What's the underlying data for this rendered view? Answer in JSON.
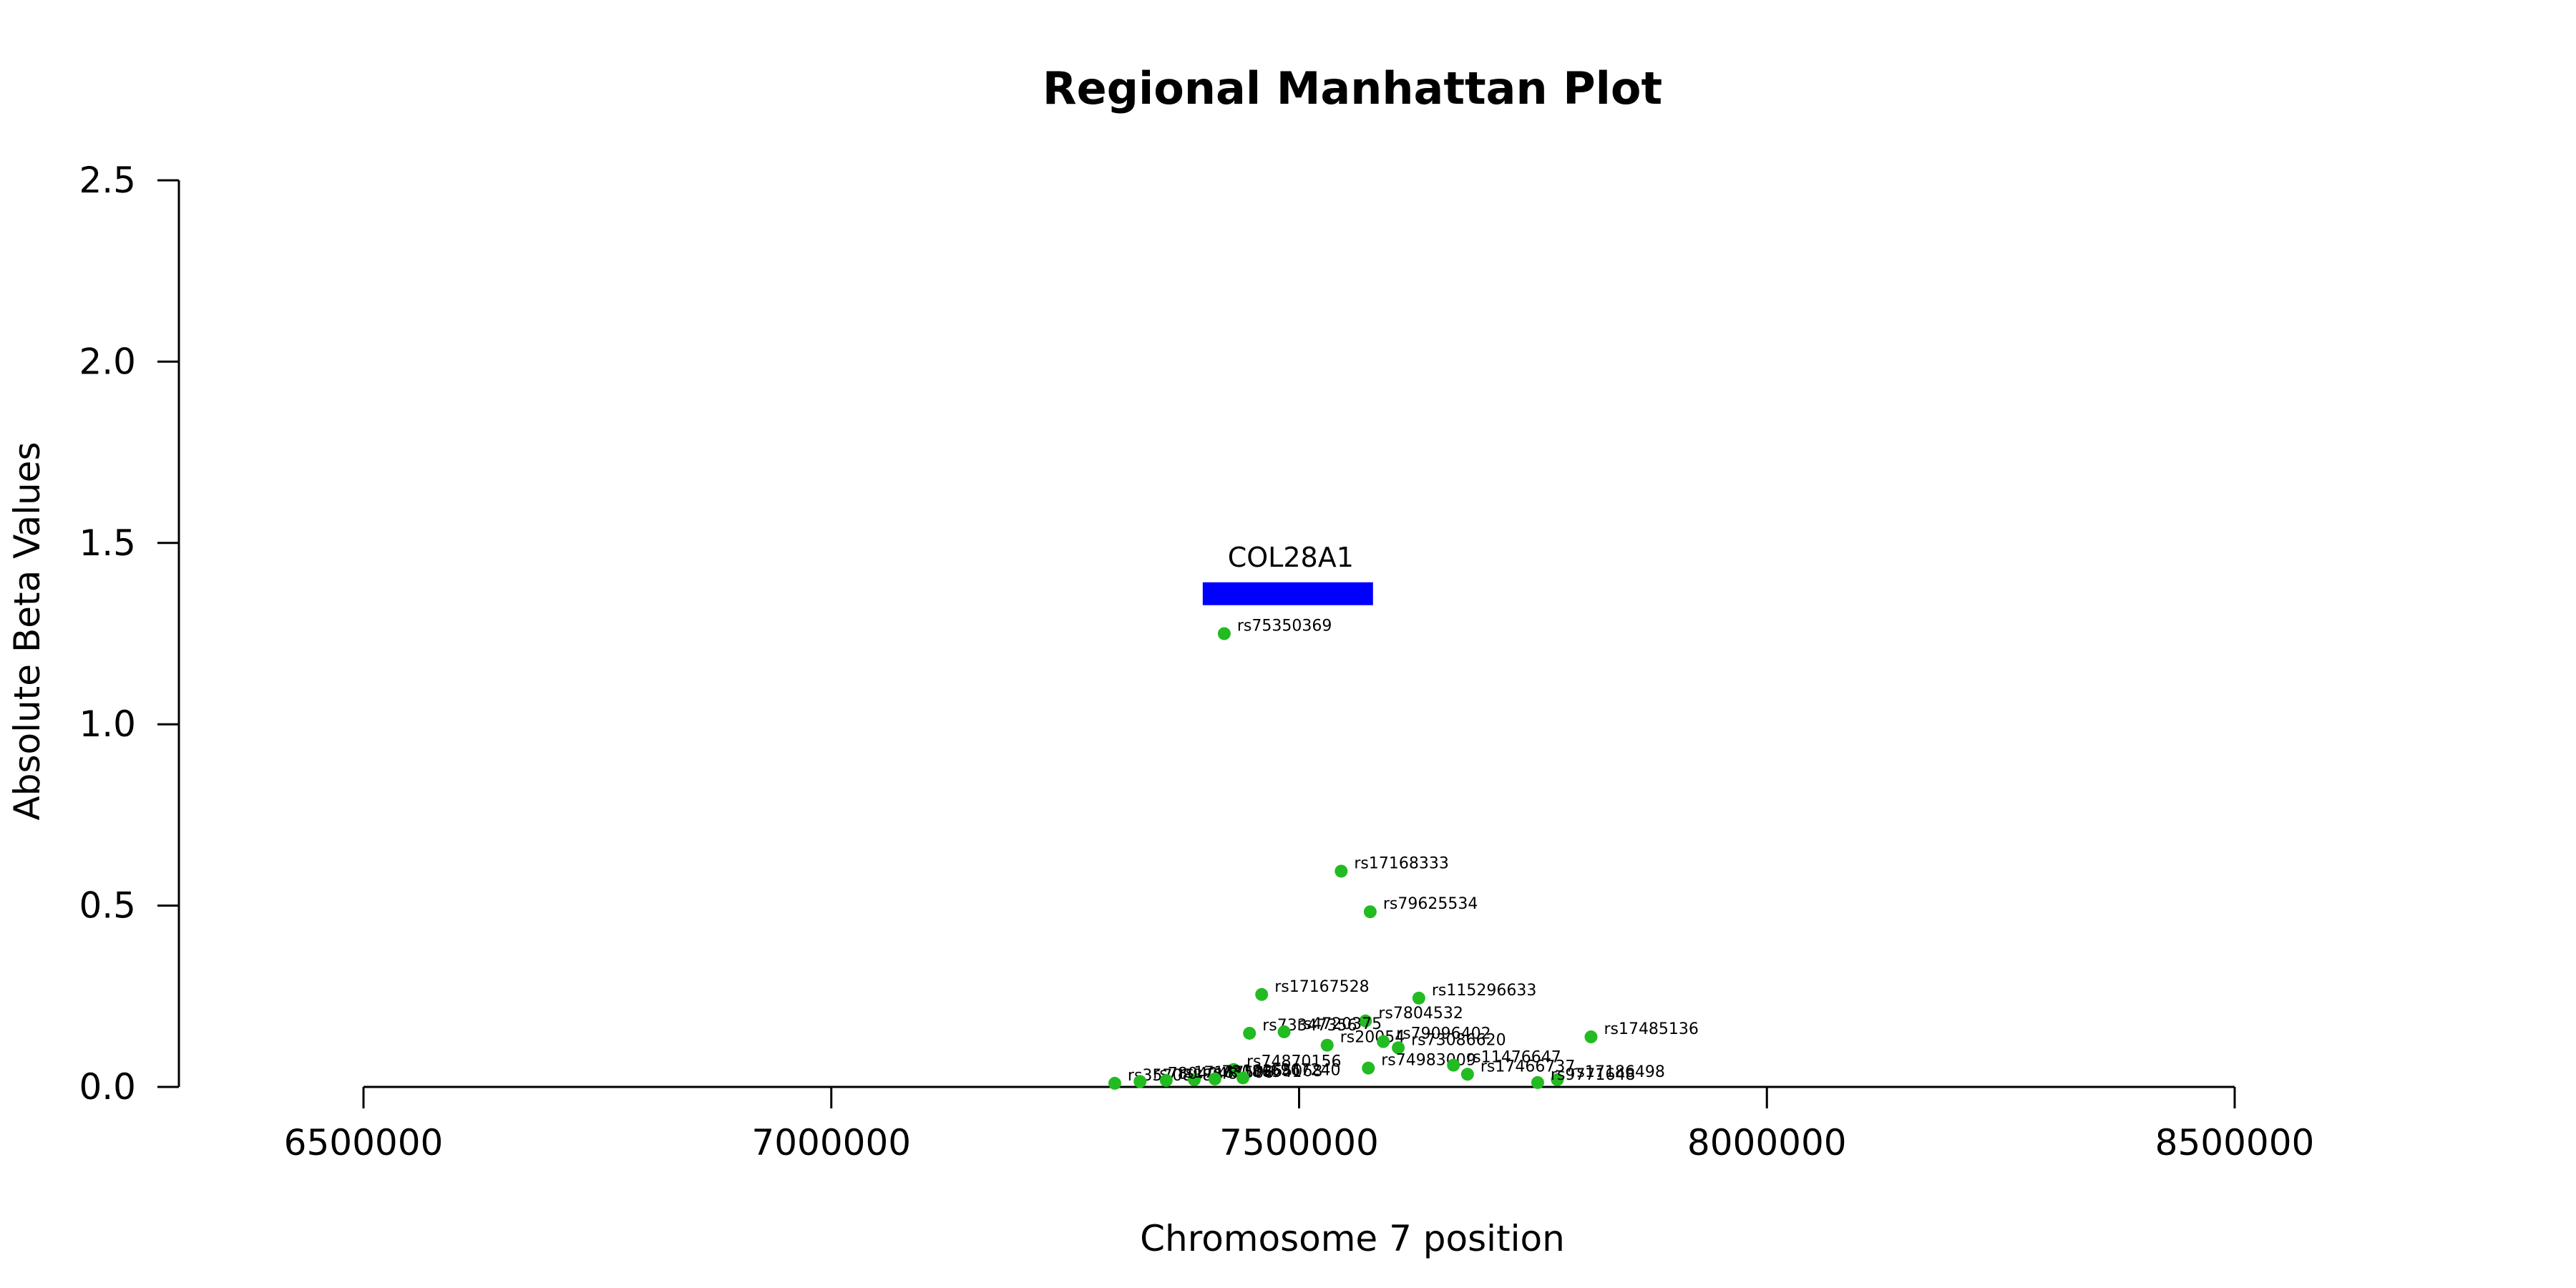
{
  "chart_data": {
    "type": "scatter",
    "title": "Regional Manhattan Plot",
    "xlabel": "Chromosome 7 position",
    "ylabel": "Absolute Beta Values",
    "xlim": [
      6300000,
      8550000
    ],
    "ylim": [
      0,
      2.5
    ],
    "xticks": [
      6500000,
      7000000,
      7500000,
      8000000,
      8500000
    ],
    "xtick_labels": [
      "6500000",
      "7000000",
      "7500000",
      "8000000",
      "8500000"
    ],
    "yticks": [
      0,
      0.5,
      1.0,
      1.5,
      2.0,
      2.5
    ],
    "ytick_labels": [
      "0.0",
      "0.5",
      "1.0",
      "1.5",
      "2.0",
      "2.5"
    ],
    "grid": false,
    "point_color": "#22bb22",
    "gene_color": "#0000ff",
    "genes": [
      {
        "name": "COL28A1",
        "start": 7397000,
        "end": 7579000,
        "y": 1.36
      }
    ],
    "points": [
      {
        "label": "rs75350369",
        "x": 7420000,
        "y": 1.25
      },
      {
        "label": "rs17168333",
        "x": 7545000,
        "y": 0.595
      },
      {
        "label": "rs79625534",
        "x": 7576000,
        "y": 0.483
      },
      {
        "label": "rs17167528",
        "x": 7460000,
        "y": 0.255
      },
      {
        "label": "rs115296633",
        "x": 7628000,
        "y": 0.245
      },
      {
        "label": "rs7804532",
        "x": 7571000,
        "y": 0.182
      },
      {
        "label": "rs73347356",
        "x": 7447000,
        "y": 0.148
      },
      {
        "label": "rs4720375",
        "x": 7484000,
        "y": 0.152
      },
      {
        "label": "rs17485136",
        "x": 7812000,
        "y": 0.138
      },
      {
        "label": "rs20054",
        "x": 7530000,
        "y": 0.115
      },
      {
        "label": "rs79096402",
        "x": 7590000,
        "y": 0.125
      },
      {
        "label": "rs73086620",
        "x": 7606000,
        "y": 0.108
      },
      {
        "label": "rs74983009",
        "x": 7574000,
        "y": 0.052
      },
      {
        "label": "rs11476647",
        "x": 7665000,
        "y": 0.06
      },
      {
        "label": "rs17466737",
        "x": 7680000,
        "y": 0.035
      },
      {
        "label": "rs74870156",
        "x": 7430000,
        "y": 0.048
      },
      {
        "label": "rs17186498",
        "x": 7776000,
        "y": 0.02
      },
      {
        "label": "rs9771648",
        "x": 7755000,
        "y": 0.012
      },
      {
        "label": "rs35708888",
        "x": 7303000,
        "y": 0.01
      },
      {
        "label": "rs73086541",
        "x": 7388000,
        "y": 0.02
      },
      {
        "label": "rs7804048",
        "x": 7330000,
        "y": 0.015
      },
      {
        "label": "rs17167506",
        "x": 7358000,
        "y": 0.018
      },
      {
        "label": "rs10265068",
        "x": 7410000,
        "y": 0.022
      },
      {
        "label": "rs6967240",
        "x": 7440000,
        "y": 0.025
      }
    ]
  }
}
